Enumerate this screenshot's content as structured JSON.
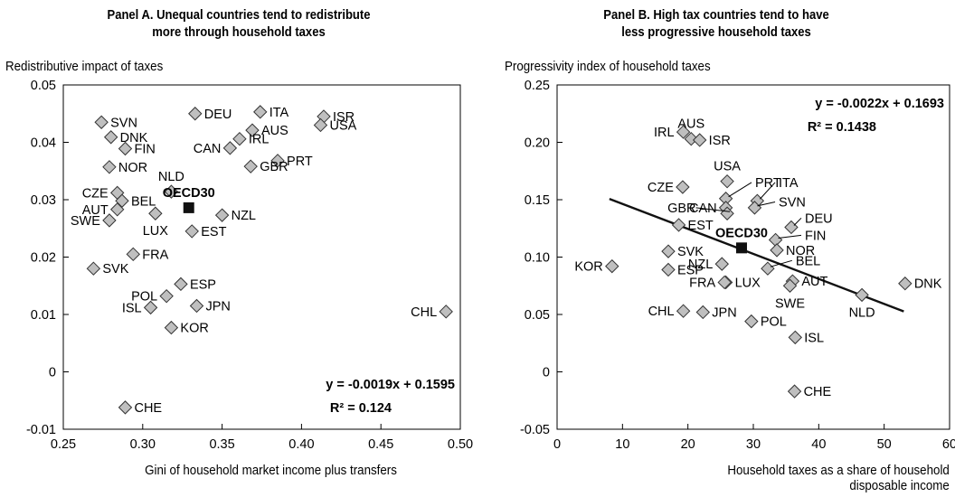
{
  "chart_data": [
    {
      "type": "scatter",
      "title_lines": [
        "Panel A. Unequal countries tend to redistribute",
        "more through household taxes"
      ],
      "ylabel": "Redistributive impact of taxes",
      "xlabel_lines": [
        "Gini of household market income plus transfers"
      ],
      "xlim": [
        0.25,
        0.5
      ],
      "ylim": [
        -0.01,
        0.05
      ],
      "xticks": [
        0.25,
        0.3,
        0.35,
        0.4,
        0.45,
        0.5
      ],
      "yticks": [
        -0.01,
        0,
        0.01,
        0.02,
        0.03,
        0.04,
        0.05
      ],
      "xtick_labels": [
        "0.25",
        "0.30",
        "0.35",
        "0.40",
        "0.45",
        "0.50"
      ],
      "ytick_labels": [
        "-0.01",
        "0",
        "0.01",
        "0.02",
        "0.03",
        "0.04",
        "0.05"
      ],
      "grid": false,
      "equation": "y = -0.0019x + 0.1595",
      "r2": "R² = 0.124",
      "points": [
        {
          "label": "SVN",
          "x": 0.274,
          "y": 0.0435,
          "pos": "right"
        },
        {
          "label": "DNK",
          "x": 0.28,
          "y": 0.0409,
          "pos": "right"
        },
        {
          "label": "FIN",
          "x": 0.289,
          "y": 0.0389,
          "pos": "right"
        },
        {
          "label": "NOR",
          "x": 0.279,
          "y": 0.0357,
          "pos": "right"
        },
        {
          "label": "CZE",
          "x": 0.284,
          "y": 0.0312,
          "pos": "left"
        },
        {
          "label": "BEL",
          "x": 0.287,
          "y": 0.0298,
          "pos": "right"
        },
        {
          "label": "AUT",
          "x": 0.284,
          "y": 0.0283,
          "pos": "left"
        },
        {
          "label": "SWE",
          "x": 0.279,
          "y": 0.0264,
          "pos": "left"
        },
        {
          "label": "DEU",
          "x": 0.333,
          "y": 0.045,
          "pos": "right"
        },
        {
          "label": "ITA",
          "x": 0.374,
          "y": 0.0453,
          "pos": "right"
        },
        {
          "label": "AUS",
          "x": 0.369,
          "y": 0.0421,
          "pos": "right"
        },
        {
          "label": "ISR",
          "x": 0.414,
          "y": 0.0445,
          "pos": "right"
        },
        {
          "label": "USA",
          "x": 0.412,
          "y": 0.043,
          "pos": "right"
        },
        {
          "label": "CAN",
          "x": 0.355,
          "y": 0.039,
          "pos": "left"
        },
        {
          "label": "IRL",
          "x": 0.361,
          "y": 0.0406,
          "pos": "right"
        },
        {
          "label": "PRT",
          "x": 0.385,
          "y": 0.0368,
          "pos": "right"
        },
        {
          "label": "GBR",
          "x": 0.368,
          "y": 0.0358,
          "pos": "right"
        },
        {
          "label": "NLD",
          "x": 0.318,
          "y": 0.0314,
          "pos": "above"
        },
        {
          "label": "LUX",
          "x": 0.308,
          "y": 0.0276,
          "pos": "below"
        },
        {
          "label": "NZL",
          "x": 0.35,
          "y": 0.0273,
          "pos": "right"
        },
        {
          "label": "EST",
          "x": 0.331,
          "y": 0.0245,
          "pos": "right"
        },
        {
          "label": "FRA",
          "x": 0.294,
          "y": 0.0205,
          "pos": "right"
        },
        {
          "label": "SVK",
          "x": 0.269,
          "y": 0.018,
          "pos": "right"
        },
        {
          "label": "ESP",
          "x": 0.324,
          "y": 0.0153,
          "pos": "right"
        },
        {
          "label": "POL",
          "x": 0.315,
          "y": 0.0132,
          "pos": "left"
        },
        {
          "label": "ISL",
          "x": 0.305,
          "y": 0.0112,
          "pos": "left"
        },
        {
          "label": "JPN",
          "x": 0.334,
          "y": 0.0115,
          "pos": "right"
        },
        {
          "label": "KOR",
          "x": 0.318,
          "y": 0.0077,
          "pos": "right"
        },
        {
          "label": "CHL",
          "x": 0.491,
          "y": 0.0105,
          "pos": "left"
        },
        {
          "label": "CHE",
          "x": 0.289,
          "y": -0.0062,
          "pos": "right"
        }
      ],
      "reference": {
        "label": "OECD30",
        "x": 0.329,
        "y": 0.0286
      }
    },
    {
      "type": "scatter",
      "title_lines": [
        "Panel B. High tax countries tend to have",
        "less progressive household taxes"
      ],
      "ylabel": "Progressivity index of household taxes",
      "xlabel_lines": [
        "Household taxes as a share of household",
        "disposable income"
      ],
      "xlim": [
        0,
        60
      ],
      "ylim": [
        -0.05,
        0.25
      ],
      "xticks": [
        0,
        10,
        20,
        30,
        40,
        50,
        60
      ],
      "yticks": [
        -0.05,
        0,
        0.05,
        0.1,
        0.15,
        0.2,
        0.25
      ],
      "xtick_labels": [
        "0",
        "10",
        "20",
        "30",
        "40",
        "50",
        "60"
      ],
      "ytick_labels": [
        "-0.05",
        "0",
        "0.05",
        "0.10",
        "0.15",
        "0.20",
        "0.25"
      ],
      "grid": false,
      "equation": "y = -0.0022x + 0.1693",
      "r2": "R² = 0.1438",
      "trendline": {
        "x": [
          8,
          53
        ],
        "y": [
          0.1507,
          0.0527
        ]
      },
      "points": [
        {
          "label": "IRL",
          "x": 19.3,
          "y": 0.209,
          "pos": "left"
        },
        {
          "label": "AUS",
          "x": 20.5,
          "y": 0.203,
          "pos": "above"
        },
        {
          "label": "ISR",
          "x": 21.8,
          "y": 0.202,
          "pos": "right"
        },
        {
          "label": "USA",
          "x": 26.0,
          "y": 0.166,
          "pos": "above"
        },
        {
          "label": "CZE",
          "x": 19.2,
          "y": 0.161,
          "pos": "left"
        },
        {
          "label": "PRT",
          "x": 25.8,
          "y": 0.151,
          "pos": "leader",
          "lx": 30.0,
          "ly": 0.165
        },
        {
          "label": "CAN",
          "x": 25.8,
          "y": 0.143,
          "pos": "left"
        },
        {
          "label": "ITA",
          "x": 30.6,
          "y": 0.149,
          "pos": "leader",
          "lx": 33.6,
          "ly": 0.165
        },
        {
          "label": "SVN",
          "x": 30.2,
          "y": 0.143,
          "pos": "leader",
          "lx": 33.6,
          "ly": 0.148
        },
        {
          "label": "GBR",
          "x": 26.0,
          "y": 0.138,
          "pos": "leader",
          "lx": 21.5,
          "ly": 0.143
        },
        {
          "label": "EST",
          "x": 18.6,
          "y": 0.128,
          "pos": "right"
        },
        {
          "label": "DEU",
          "x": 35.8,
          "y": 0.126,
          "pos": "leader",
          "lx": 37.6,
          "ly": 0.134
        },
        {
          "label": "FIN",
          "x": 33.4,
          "y": 0.115,
          "pos": "leader",
          "lx": 37.6,
          "ly": 0.119
        },
        {
          "label": "NOR",
          "x": 33.6,
          "y": 0.106,
          "pos": "right"
        },
        {
          "label": "SVK",
          "x": 17.0,
          "y": 0.105,
          "pos": "right"
        },
        {
          "label": "KOR",
          "x": 8.4,
          "y": 0.092,
          "pos": "left"
        },
        {
          "label": "ESP",
          "x": 17.0,
          "y": 0.089,
          "pos": "right"
        },
        {
          "label": "NZL",
          "x": 25.2,
          "y": 0.094,
          "pos": "left"
        },
        {
          "label": "BEL",
          "x": 32.2,
          "y": 0.09,
          "pos": "leader",
          "lx": 36.2,
          "ly": 0.097
        },
        {
          "label": "LUX",
          "x": 25.8,
          "y": 0.078,
          "pos": "right"
        },
        {
          "label": "FRA",
          "x": 25.6,
          "y": 0.078,
          "pos": "left"
        },
        {
          "label": "AUT",
          "x": 36.0,
          "y": 0.079,
          "pos": "right"
        },
        {
          "label": "SWE",
          "x": 35.6,
          "y": 0.075,
          "pos": "below"
        },
        {
          "label": "NLD",
          "x": 46.6,
          "y": 0.067,
          "pos": "below"
        },
        {
          "label": "DNK",
          "x": 53.2,
          "y": 0.077,
          "pos": "right"
        },
        {
          "label": "CHL",
          "x": 19.3,
          "y": 0.053,
          "pos": "left"
        },
        {
          "label": "JPN",
          "x": 22.3,
          "y": 0.052,
          "pos": "right"
        },
        {
          "label": "POL",
          "x": 29.7,
          "y": 0.044,
          "pos": "right"
        },
        {
          "label": "ISL",
          "x": 36.4,
          "y": 0.03,
          "pos": "right"
        },
        {
          "label": "CHE",
          "x": 36.3,
          "y": -0.017,
          "pos": "right"
        }
      ],
      "reference": {
        "label": "OECD30",
        "x": 28.2,
        "y": 0.108
      }
    }
  ]
}
